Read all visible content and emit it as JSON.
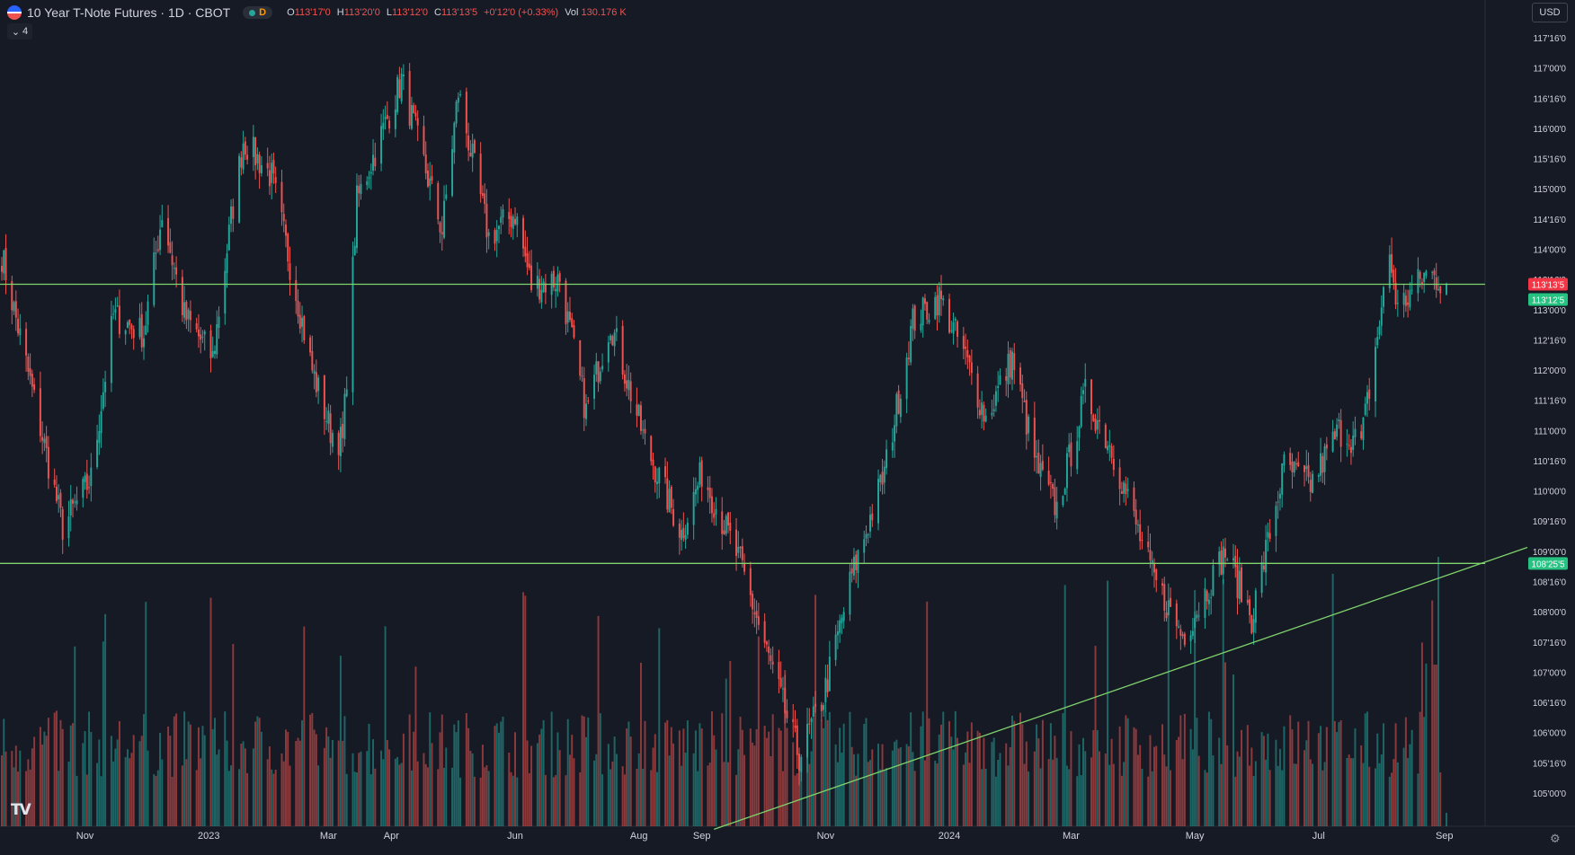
{
  "header": {
    "title": "10 Year T-Note Futures · 1D · CBOT",
    "interval_badge": "D",
    "open_label": "O",
    "open": "113'17'0",
    "high_label": "H",
    "high": "113'20'0",
    "low_label": "L",
    "low": "113'12'0",
    "close_label": "C",
    "close": "113'13'5",
    "change": "+0'12'0 (+0.33%)",
    "vol_label": "Vol",
    "vol": "130.176 K",
    "indicators_count": "4",
    "currency": "USD"
  },
  "colors": {
    "background": "#161a25",
    "up": "#26a69a",
    "down": "#ef5350",
    "line": "#7fd36b",
    "text": "#d1d4dc"
  },
  "chart_data": {
    "type": "candlestick",
    "price_unit": "points and 32nds (113'16'0 = 113 16/32)",
    "y_ticks": [
      "117'16'0",
      "117'00'0",
      "116'16'0",
      "116'00'0",
      "115'16'0",
      "115'00'0",
      "114'16'0",
      "114'00'0",
      "113'16'0",
      "113'00'0",
      "112'16'0",
      "112'00'0",
      "111'16'0",
      "111'00'0",
      "110'16'0",
      "110'00'0",
      "109'16'0",
      "109'00'0",
      "108'16'0",
      "108'00'0",
      "107'16'0",
      "107'00'0",
      "106'16'0",
      "106'00'0",
      "105'16'0",
      "105'00'0"
    ],
    "y_tick_values": [
      117.5,
      117,
      116.5,
      116,
      115.5,
      115,
      114.5,
      114,
      113.5,
      113,
      112.5,
      112,
      111.5,
      111,
      110.5,
      110,
      109.5,
      109,
      108.5,
      108,
      107.5,
      107,
      106.5,
      106,
      105.5,
      105
    ],
    "y_range": [
      104.5,
      118.1
    ],
    "x_ticks": [
      "Nov",
      "2023",
      "Mar",
      "Apr",
      "Jun",
      "Aug",
      "Sep",
      "Nov",
      "2024",
      "Mar",
      "May",
      "Jul",
      "Sep"
    ],
    "x_tick_dates": [
      "2022-11-01",
      "2023-01-01",
      "2023-03-01",
      "2023-04-01",
      "2023-06-01",
      "2023-08-01",
      "2023-09-01",
      "2023-11-01",
      "2024-01-01",
      "2024-03-01",
      "2024-05-01",
      "2024-07-01",
      "2024-09-01"
    ],
    "x_range": [
      "2022-09-21",
      "2024-09-02"
    ],
    "price_path": [
      {
        "date": "2022-09-21",
        "close": 113.9
      },
      {
        "date": "2022-10-05",
        "close": 111.8
      },
      {
        "date": "2022-10-21",
        "close": 109.4
      },
      {
        "date": "2022-11-04",
        "close": 110.2
      },
      {
        "date": "2022-11-15",
        "close": 112.9
      },
      {
        "date": "2022-11-30",
        "close": 112.6
      },
      {
        "date": "2022-12-09",
        "close": 114.6
      },
      {
        "date": "2022-12-20",
        "close": 112.9
      },
      {
        "date": "2023-01-03",
        "close": 112.2
      },
      {
        "date": "2023-01-12",
        "close": 114.5
      },
      {
        "date": "2023-01-18",
        "close": 115.8
      },
      {
        "date": "2023-02-01",
        "close": 115.2
      },
      {
        "date": "2023-02-21",
        "close": 112.0
      },
      {
        "date": "2023-03-02",
        "close": 111.0
      },
      {
        "date": "2023-03-08",
        "close": 110.8
      },
      {
        "date": "2023-03-15",
        "close": 114.8
      },
      {
        "date": "2023-04-06",
        "close": 116.8
      },
      {
        "date": "2023-04-26",
        "close": 114.3
      },
      {
        "date": "2023-05-04",
        "close": 116.6
      },
      {
        "date": "2023-05-19",
        "close": 114.2
      },
      {
        "date": "2023-06-01",
        "close": 114.6
      },
      {
        "date": "2023-06-09",
        "close": 113.4
      },
      {
        "date": "2023-06-23",
        "close": 113.5
      },
      {
        "date": "2023-07-06",
        "close": 111.3
      },
      {
        "date": "2023-07-18",
        "close": 112.8
      },
      {
        "date": "2023-08-04",
        "close": 110.8
      },
      {
        "date": "2023-08-22",
        "close": 109.3
      },
      {
        "date": "2023-09-01",
        "close": 110.3
      },
      {
        "date": "2023-09-20",
        "close": 108.8
      },
      {
        "date": "2023-10-06",
        "close": 107.0
      },
      {
        "date": "2023-10-19",
        "close": 105.6
      },
      {
        "date": "2023-10-31",
        "close": 106.6
      },
      {
        "date": "2023-11-14",
        "close": 108.6
      },
      {
        "date": "2023-11-30",
        "close": 110.3
      },
      {
        "date": "2023-12-14",
        "close": 112.8
      },
      {
        "date": "2023-12-27",
        "close": 113.2
      },
      {
        "date": "2024-01-08",
        "close": 112.3
      },
      {
        "date": "2024-01-19",
        "close": 111.2
      },
      {
        "date": "2024-02-01",
        "close": 112.2
      },
      {
        "date": "2024-02-13",
        "close": 110.4
      },
      {
        "date": "2024-02-23",
        "close": 109.7
      },
      {
        "date": "2024-03-08",
        "close": 111.6
      },
      {
        "date": "2024-03-21",
        "close": 110.7
      },
      {
        "date": "2024-04-10",
        "close": 108.6
      },
      {
        "date": "2024-04-25",
        "close": 107.6
      },
      {
        "date": "2024-05-03",
        "close": 108.1
      },
      {
        "date": "2024-05-16",
        "close": 109.0
      },
      {
        "date": "2024-05-29",
        "close": 107.9
      },
      {
        "date": "2024-06-14",
        "close": 110.4
      },
      {
        "date": "2024-06-27",
        "close": 110.1
      },
      {
        "date": "2024-07-11",
        "close": 111.0
      },
      {
        "date": "2024-07-22",
        "close": 110.8
      },
      {
        "date": "2024-08-05",
        "close": 113.9
      },
      {
        "date": "2024-08-09",
        "close": 113.0
      },
      {
        "date": "2024-08-23",
        "close": 113.6
      },
      {
        "date": "2024-09-02",
        "close": 113.43
      }
    ],
    "volume": {
      "type": "bar",
      "note": "daily volume bars, colored by candle direction, max ≈ 1.0 relative"
    },
    "horizontal_lines": [
      {
        "price": 113.42,
        "tag": "113'13'5",
        "tag_color": "#f23645"
      },
      {
        "price": 108.8,
        "tag": "108'25'5",
        "tag_color": "#26c281"
      }
    ],
    "price_tags": [
      {
        "price": 113.39,
        "label": "113'12'5",
        "color": "#26c281"
      }
    ],
    "trendline": {
      "from": {
        "date": "2023-09-07",
        "price": 104.4
      },
      "to": {
        "date": "2024-09-02",
        "price": 108.5
      }
    }
  }
}
